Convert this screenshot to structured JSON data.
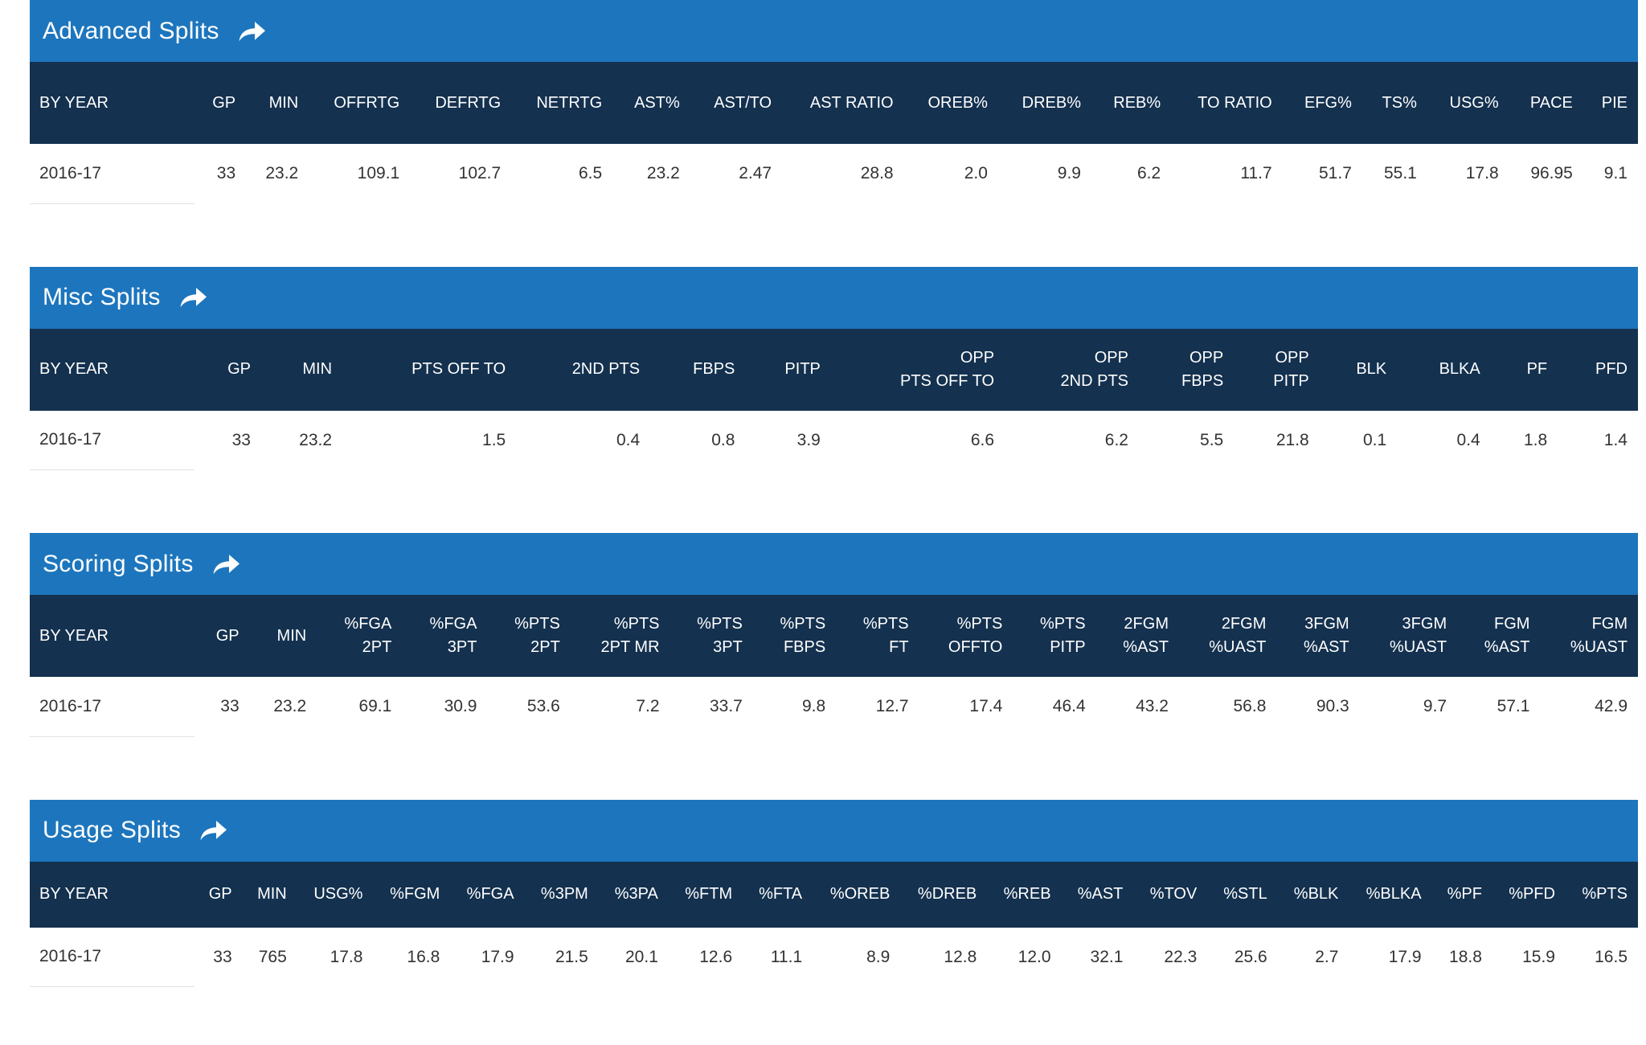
{
  "theme": {
    "title_bg": "#1d76bd",
    "header_bg": "#14314f",
    "page_bg": "#ffffff",
    "header_text": "#ffffff",
    "cell_text": "#333333",
    "row_divider": "#e2e2e2"
  },
  "icons": {
    "share": "share-arrow-icon"
  },
  "sections": [
    {
      "title": "Advanced Splits",
      "columns": [
        "BY YEAR",
        "GP",
        "MIN",
        "OFFRTG",
        "DEFRTG",
        "NETRTG",
        "AST%",
        "AST/TO",
        "AST RATIO",
        "OREB%",
        "DREB%",
        "REB%",
        "TO RATIO",
        "EFG%",
        "TS%",
        "USG%",
        "PACE",
        "PIE"
      ],
      "rows": [
        [
          "2016-17",
          "33",
          "23.2",
          "109.1",
          "102.7",
          "6.5",
          "23.2",
          "2.47",
          "28.8",
          "2.0",
          "9.9",
          "6.2",
          "11.7",
          "51.7",
          "55.1",
          "17.8",
          "96.95",
          "9.1"
        ]
      ]
    },
    {
      "title": "Misc Splits",
      "columns": [
        "BY YEAR",
        "GP",
        "MIN",
        "PTS OFF TO",
        "2ND PTS",
        "FBPS",
        "PITP",
        "OPP\nPTS OFF TO",
        "OPP\n2ND PTS",
        "OPP\nFBPS",
        "OPP\nPITP",
        "BLK",
        "BLKA",
        "PF",
        "PFD"
      ],
      "rows": [
        [
          "2016-17",
          "33",
          "23.2",
          "1.5",
          "0.4",
          "0.8",
          "3.9",
          "6.6",
          "6.2",
          "5.5",
          "21.8",
          "0.1",
          "0.4",
          "1.8",
          "1.4"
        ]
      ]
    },
    {
      "title": "Scoring Splits",
      "columns": [
        "BY YEAR",
        "GP",
        "MIN",
        "%FGA\n2PT",
        "%FGA\n3PT",
        "%PTS\n2PT",
        "%PTS\n2PT MR",
        "%PTS\n3PT",
        "%PTS\nFBPS",
        "%PTS\nFT",
        "%PTS\nOFFTO",
        "%PTS\nPITP",
        "2FGM\n%AST",
        "2FGM\n%UAST",
        "3FGM\n%AST",
        "3FGM\n%UAST",
        "FGM\n%AST",
        "FGM\n%UAST"
      ],
      "rows": [
        [
          "2016-17",
          "33",
          "23.2",
          "69.1",
          "30.9",
          "53.6",
          "7.2",
          "33.7",
          "9.8",
          "12.7",
          "17.4",
          "46.4",
          "43.2",
          "56.8",
          "90.3",
          "9.7",
          "57.1",
          "42.9"
        ]
      ]
    },
    {
      "title": "Usage Splits",
      "columns": [
        "BY YEAR",
        "GP",
        "MIN",
        "USG%",
        "%FGM",
        "%FGA",
        "%3PM",
        "%3PA",
        "%FTM",
        "%FTA",
        "%OREB",
        "%DREB",
        "%REB",
        "%AST",
        "%TOV",
        "%STL",
        "%BLK",
        "%BLKA",
        "%PF",
        "%PFD",
        "%PTS"
      ],
      "rows": [
        [
          "2016-17",
          "33",
          "765",
          "17.8",
          "16.8",
          "17.9",
          "21.5",
          "20.1",
          "12.6",
          "11.1",
          "8.9",
          "12.8",
          "12.0",
          "32.1",
          "22.3",
          "25.6",
          "2.7",
          "17.9",
          "18.8",
          "15.9",
          "16.5"
        ]
      ]
    }
  ]
}
